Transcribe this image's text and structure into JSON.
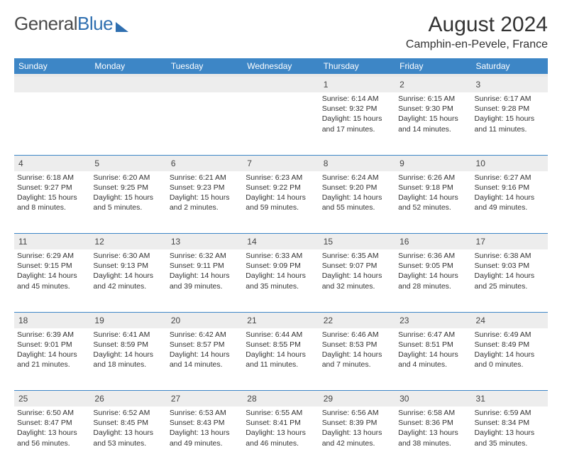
{
  "logo": {
    "text_a": "General",
    "text_b": "Blue"
  },
  "header": {
    "month": "August 2024",
    "location": "Camphin-en-Pevele, France"
  },
  "colors": {
    "accent": "#3d86c6",
    "daynum_bg": "#ededed",
    "text": "#333333"
  },
  "weekdays": [
    "Sunday",
    "Monday",
    "Tuesday",
    "Wednesday",
    "Thursday",
    "Friday",
    "Saturday"
  ],
  "weeks": [
    [
      {
        "n": "",
        "sr": "",
        "ss": "",
        "dl": ""
      },
      {
        "n": "",
        "sr": "",
        "ss": "",
        "dl": ""
      },
      {
        "n": "",
        "sr": "",
        "ss": "",
        "dl": ""
      },
      {
        "n": "",
        "sr": "",
        "ss": "",
        "dl": ""
      },
      {
        "n": "1",
        "sr": "6:14 AM",
        "ss": "9:32 PM",
        "dl": "15 hours and 17 minutes."
      },
      {
        "n": "2",
        "sr": "6:15 AM",
        "ss": "9:30 PM",
        "dl": "15 hours and 14 minutes."
      },
      {
        "n": "3",
        "sr": "6:17 AM",
        "ss": "9:28 PM",
        "dl": "15 hours and 11 minutes."
      }
    ],
    [
      {
        "n": "4",
        "sr": "6:18 AM",
        "ss": "9:27 PM",
        "dl": "15 hours and 8 minutes."
      },
      {
        "n": "5",
        "sr": "6:20 AM",
        "ss": "9:25 PM",
        "dl": "15 hours and 5 minutes."
      },
      {
        "n": "6",
        "sr": "6:21 AM",
        "ss": "9:23 PM",
        "dl": "15 hours and 2 minutes."
      },
      {
        "n": "7",
        "sr": "6:23 AM",
        "ss": "9:22 PM",
        "dl": "14 hours and 59 minutes."
      },
      {
        "n": "8",
        "sr": "6:24 AM",
        "ss": "9:20 PM",
        "dl": "14 hours and 55 minutes."
      },
      {
        "n": "9",
        "sr": "6:26 AM",
        "ss": "9:18 PM",
        "dl": "14 hours and 52 minutes."
      },
      {
        "n": "10",
        "sr": "6:27 AM",
        "ss": "9:16 PM",
        "dl": "14 hours and 49 minutes."
      }
    ],
    [
      {
        "n": "11",
        "sr": "6:29 AM",
        "ss": "9:15 PM",
        "dl": "14 hours and 45 minutes."
      },
      {
        "n": "12",
        "sr": "6:30 AM",
        "ss": "9:13 PM",
        "dl": "14 hours and 42 minutes."
      },
      {
        "n": "13",
        "sr": "6:32 AM",
        "ss": "9:11 PM",
        "dl": "14 hours and 39 minutes."
      },
      {
        "n": "14",
        "sr": "6:33 AM",
        "ss": "9:09 PM",
        "dl": "14 hours and 35 minutes."
      },
      {
        "n": "15",
        "sr": "6:35 AM",
        "ss": "9:07 PM",
        "dl": "14 hours and 32 minutes."
      },
      {
        "n": "16",
        "sr": "6:36 AM",
        "ss": "9:05 PM",
        "dl": "14 hours and 28 minutes."
      },
      {
        "n": "17",
        "sr": "6:38 AM",
        "ss": "9:03 PM",
        "dl": "14 hours and 25 minutes."
      }
    ],
    [
      {
        "n": "18",
        "sr": "6:39 AM",
        "ss": "9:01 PM",
        "dl": "14 hours and 21 minutes."
      },
      {
        "n": "19",
        "sr": "6:41 AM",
        "ss": "8:59 PM",
        "dl": "14 hours and 18 minutes."
      },
      {
        "n": "20",
        "sr": "6:42 AM",
        "ss": "8:57 PM",
        "dl": "14 hours and 14 minutes."
      },
      {
        "n": "21",
        "sr": "6:44 AM",
        "ss": "8:55 PM",
        "dl": "14 hours and 11 minutes."
      },
      {
        "n": "22",
        "sr": "6:46 AM",
        "ss": "8:53 PM",
        "dl": "14 hours and 7 minutes."
      },
      {
        "n": "23",
        "sr": "6:47 AM",
        "ss": "8:51 PM",
        "dl": "14 hours and 4 minutes."
      },
      {
        "n": "24",
        "sr": "6:49 AM",
        "ss": "8:49 PM",
        "dl": "14 hours and 0 minutes."
      }
    ],
    [
      {
        "n": "25",
        "sr": "6:50 AM",
        "ss": "8:47 PM",
        "dl": "13 hours and 56 minutes."
      },
      {
        "n": "26",
        "sr": "6:52 AM",
        "ss": "8:45 PM",
        "dl": "13 hours and 53 minutes."
      },
      {
        "n": "27",
        "sr": "6:53 AM",
        "ss": "8:43 PM",
        "dl": "13 hours and 49 minutes."
      },
      {
        "n": "28",
        "sr": "6:55 AM",
        "ss": "8:41 PM",
        "dl": "13 hours and 46 minutes."
      },
      {
        "n": "29",
        "sr": "6:56 AM",
        "ss": "8:39 PM",
        "dl": "13 hours and 42 minutes."
      },
      {
        "n": "30",
        "sr": "6:58 AM",
        "ss": "8:36 PM",
        "dl": "13 hours and 38 minutes."
      },
      {
        "n": "31",
        "sr": "6:59 AM",
        "ss": "8:34 PM",
        "dl": "13 hours and 35 minutes."
      }
    ]
  ],
  "labels": {
    "sunrise": "Sunrise:",
    "sunset": "Sunset:",
    "daylight": "Daylight:"
  }
}
